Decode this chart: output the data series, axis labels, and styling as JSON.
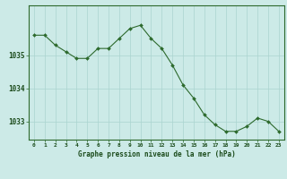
{
  "x": [
    0,
    1,
    2,
    3,
    4,
    5,
    6,
    7,
    8,
    9,
    10,
    11,
    12,
    13,
    14,
    15,
    16,
    17,
    18,
    19,
    20,
    21,
    22,
    23
  ],
  "y": [
    1035.6,
    1035.6,
    1035.3,
    1035.1,
    1034.9,
    1034.9,
    1035.2,
    1035.2,
    1035.5,
    1035.8,
    1035.9,
    1035.5,
    1035.2,
    1034.7,
    1034.1,
    1033.7,
    1033.2,
    1032.9,
    1032.7,
    1032.7,
    1032.85,
    1033.1,
    1033.0,
    1032.7
  ],
  "line_color": "#2d6a2d",
  "marker_color": "#2d6a2d",
  "bg_color": "#cceae7",
  "grid_color": "#aad4d0",
  "xlabel": "Graphe pression niveau de la mer (hPa)",
  "xlabel_color": "#1a4a1a",
  "tick_color": "#1a4a1a",
  "axis_color": "#2d6a2d",
  "ylim_min": 1032.45,
  "ylim_max": 1036.5,
  "yticks": [
    1033,
    1034,
    1035
  ],
  "xticks": [
    0,
    1,
    2,
    3,
    4,
    5,
    6,
    7,
    8,
    9,
    10,
    11,
    12,
    13,
    14,
    15,
    16,
    17,
    18,
    19,
    20,
    21,
    22,
    23
  ]
}
